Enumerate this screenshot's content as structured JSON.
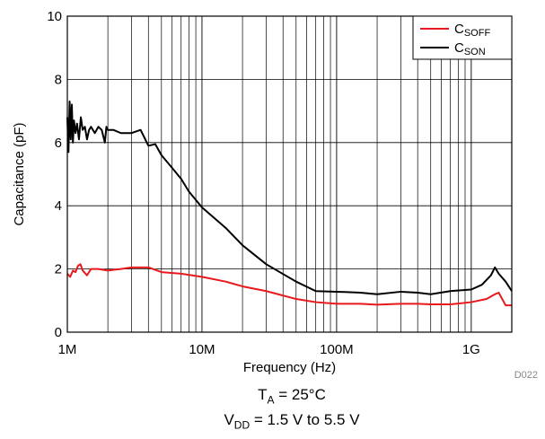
{
  "chart_data": {
    "type": "line",
    "xlabel": "Frequency (Hz)",
    "ylabel": "Capacitance (pF)",
    "x_scale": "log",
    "xlim": [
      1000000,
      2000000000
    ],
    "ylim": [
      0,
      10
    ],
    "grid": true,
    "legend_position": "top-right",
    "x_ticks": [
      {
        "value": 1000000,
        "label": "1M"
      },
      {
        "value": 10000000,
        "label": "10M"
      },
      {
        "value": 100000000,
        "label": "100M"
      },
      {
        "value": 1000000000,
        "label": "1G"
      }
    ],
    "y_ticks": [
      0,
      2,
      4,
      6,
      8,
      10
    ],
    "series": [
      {
        "name": "C_SOFF",
        "legend_main": "C",
        "legend_sub": "SOFF",
        "color": "#e8191c",
        "x": [
          1000000,
          1050000,
          1100000,
          1150000,
          1200000,
          1250000,
          1300000,
          1400000,
          1500000,
          1700000,
          2000000,
          2500000,
          3000000,
          3500000,
          4000000,
          5000000,
          7000000,
          10000000,
          15000000,
          20000000,
          30000000,
          50000000,
          70000000,
          100000000,
          150000000,
          200000000,
          300000000,
          400000000,
          500000000,
          700000000,
          1000000000,
          1300000000,
          1500000000,
          1600000000,
          1800000000,
          2000000000
        ],
        "values": [
          1.85,
          1.75,
          1.95,
          1.9,
          2.1,
          2.15,
          1.95,
          1.8,
          2.0,
          2.0,
          1.95,
          2.0,
          2.05,
          2.05,
          2.05,
          1.9,
          1.85,
          1.75,
          1.6,
          1.45,
          1.3,
          1.05,
          0.95,
          0.9,
          0.9,
          0.87,
          0.9,
          0.9,
          0.88,
          0.88,
          0.95,
          1.05,
          1.2,
          1.25,
          0.85,
          0.85
        ]
      },
      {
        "name": "C_SON",
        "legend_main": "C",
        "legend_sub": "SON",
        "color": "#000000",
        "x": [
          1000000,
          1020000,
          1040000,
          1060000,
          1080000,
          1100000,
          1120000,
          1150000,
          1180000,
          1220000,
          1260000,
          1300000,
          1350000,
          1400000,
          1450000,
          1500000,
          1600000,
          1700000,
          1800000,
          1900000,
          1950000,
          2000000,
          2200000,
          2500000,
          3000000,
          3500000,
          4000000,
          4500000,
          5000000,
          6000000,
          7000000,
          8000000,
          10000000,
          15000000,
          20000000,
          30000000,
          50000000,
          70000000,
          100000000,
          150000000,
          200000000,
          300000000,
          400000000,
          500000000,
          700000000,
          1000000000,
          1200000000,
          1400000000,
          1500000000,
          1600000000,
          1800000000,
          2000000000
        ],
        "values": [
          6.8,
          5.7,
          7.3,
          6.1,
          7.2,
          6.0,
          6.7,
          6.3,
          6.6,
          6.1,
          6.8,
          6.4,
          6.5,
          6.1,
          6.4,
          6.5,
          6.3,
          6.5,
          6.4,
          6.0,
          6.5,
          6.4,
          6.4,
          6.3,
          6.3,
          6.4,
          5.9,
          5.95,
          5.6,
          5.2,
          4.85,
          4.45,
          3.95,
          3.3,
          2.75,
          2.15,
          1.6,
          1.3,
          1.28,
          1.25,
          1.2,
          1.28,
          1.25,
          1.2,
          1.3,
          1.35,
          1.5,
          1.8,
          2.05,
          1.85,
          1.6,
          1.3
        ]
      }
    ]
  },
  "conditions": {
    "ta_main": "T",
    "ta_sub": "A",
    "ta_value": " = 25°C",
    "vdd_main": "V",
    "vdd_sub": "DD",
    "vdd_value": " = 1.5 V to 5.5 V"
  },
  "figure_id": "D022"
}
